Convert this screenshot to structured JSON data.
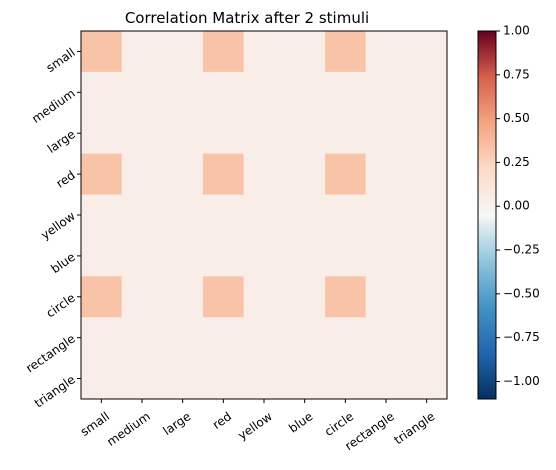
{
  "chart_data": {
    "type": "heatmap",
    "title": "Correlation Matrix after 2 stimuli",
    "row_labels": [
      "small",
      "medium",
      "large",
      "red",
      "yellow",
      "blue",
      "circle",
      "rectangle",
      "triangle"
    ],
    "col_labels": [
      "small",
      "medium",
      "large",
      "red",
      "yellow",
      "blue",
      "circle",
      "rectangle",
      "triangle"
    ],
    "values": [
      [
        0.33,
        0.04,
        0.04,
        0.33,
        0.04,
        0.04,
        0.33,
        0.04,
        0.04
      ],
      [
        0.04,
        0.04,
        0.04,
        0.04,
        0.04,
        0.04,
        0.04,
        0.04,
        0.04
      ],
      [
        0.04,
        0.04,
        0.04,
        0.04,
        0.04,
        0.04,
        0.04,
        0.04,
        0.04
      ],
      [
        0.33,
        0.04,
        0.04,
        0.33,
        0.04,
        0.04,
        0.33,
        0.04,
        0.04
      ],
      [
        0.04,
        0.04,
        0.04,
        0.04,
        0.04,
        0.04,
        0.04,
        0.04,
        0.04
      ],
      [
        0.04,
        0.04,
        0.04,
        0.04,
        0.04,
        0.04,
        0.04,
        0.04,
        0.04
      ],
      [
        0.33,
        0.04,
        0.04,
        0.33,
        0.04,
        0.04,
        0.33,
        0.04,
        0.04
      ],
      [
        0.04,
        0.04,
        0.04,
        0.04,
        0.04,
        0.04,
        0.04,
        0.04,
        0.04
      ],
      [
        0.04,
        0.04,
        0.04,
        0.04,
        0.04,
        0.04,
        0.04,
        0.04,
        0.04
      ]
    ],
    "colorbar": {
      "colormap": "RdBu_r",
      "range": [
        -1.1,
        1.0
      ],
      "ticks": [
        1.0,
        0.75,
        0.5,
        0.25,
        0.0,
        -0.25,
        -0.5,
        -0.75,
        -1.0
      ],
      "tick_labels": [
        "1.00",
        "0.75",
        "0.50",
        "0.25",
        "0.00",
        "−0.25",
        "−0.50",
        "−0.75",
        "−1.00"
      ]
    }
  }
}
